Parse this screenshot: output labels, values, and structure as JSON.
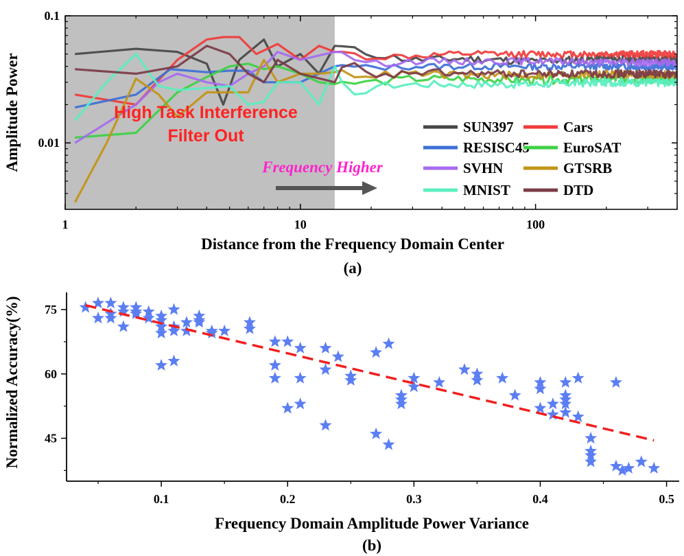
{
  "figure_label_a": "(a)",
  "figure_label_b": "(b)",
  "annotations": {
    "region_line1": "High Task Interference",
    "region_line2": "Filter Out",
    "arrow_label": "Frequency Higher"
  },
  "chart_data": [
    {
      "type": "line",
      "xscale": "log",
      "yscale": "log",
      "xlabel": "Distance from the Frequency Domain Center",
      "ylabel": "Amplitude Power",
      "xlim": [
        1,
        400
      ],
      "ylim": [
        0.003,
        0.1
      ],
      "xticks": [
        1,
        10,
        100
      ],
      "xtick_labels": [
        "1",
        "10",
        "100"
      ],
      "yticks": [
        0.01,
        0.1
      ],
      "ytick_labels": [
        "0.01",
        "0.1"
      ],
      "shaded_region": {
        "x_from": 1,
        "x_to": 14,
        "color": "#c0c0c0"
      },
      "legend": {
        "position": "bottom-right",
        "columns": 2
      },
      "series": [
        {
          "name": "SUN397",
          "color": "#474747",
          "width": 3.2,
          "x": [
            1.1,
            2,
            3,
            4,
            4.7,
            5.5,
            7,
            8,
            10,
            12,
            14,
            20,
            30,
            50,
            100,
            200,
            400
          ],
          "y": [
            0.05,
            0.055,
            0.052,
            0.042,
            0.02,
            0.045,
            0.065,
            0.04,
            0.05,
            0.035,
            0.058,
            0.05,
            0.045,
            0.046,
            0.044,
            0.046,
            0.045
          ],
          "noise": 0.07,
          "seed": 11
        },
        {
          "name": "Cars",
          "color": "#f03b3b",
          "width": 3.2,
          "x": [
            1.1,
            2,
            3,
            4,
            4.7,
            5.5,
            6.5,
            8,
            10,
            12,
            14,
            20,
            30,
            50,
            100,
            200,
            400
          ],
          "y": [
            0.024,
            0.02,
            0.045,
            0.065,
            0.068,
            0.068,
            0.05,
            0.06,
            0.045,
            0.058,
            0.052,
            0.047,
            0.048,
            0.05,
            0.05,
            0.05,
            0.05
          ],
          "noise": 0.06,
          "seed": 12
        },
        {
          "name": "RESISC45",
          "color": "#3d6fd6",
          "width": 3.2,
          "x": [
            1.1,
            2,
            2.8,
            4,
            5,
            6,
            7,
            8,
            10,
            14,
            20,
            30,
            50,
            100,
            200,
            400
          ],
          "y": [
            0.019,
            0.024,
            0.038,
            0.036,
            0.037,
            0.037,
            0.03,
            0.03,
            0.03,
            0.04,
            0.039,
            0.04,
            0.04,
            0.04,
            0.04,
            0.04
          ],
          "noise": 0.06,
          "seed": 13
        },
        {
          "name": "EuroSAT",
          "color": "#3ed144",
          "width": 3.2,
          "x": [
            1.1,
            2,
            3,
            4,
            5,
            6,
            7,
            8,
            10,
            12,
            14,
            20,
            30,
            50,
            100,
            200,
            400
          ],
          "y": [
            0.011,
            0.012,
            0.025,
            0.033,
            0.04,
            0.042,
            0.038,
            0.04,
            0.035,
            0.03,
            0.029,
            0.03,
            0.032,
            0.032,
            0.031,
            0.032,
            0.031
          ],
          "noise": 0.07,
          "seed": 14
        },
        {
          "name": "SVHN",
          "color": "#a56bf0",
          "width": 3.2,
          "x": [
            1.1,
            2,
            2.5,
            3,
            4,
            5,
            6,
            7,
            8,
            10,
            14,
            20,
            30,
            50,
            100,
            200,
            400
          ],
          "y": [
            0.01,
            0.02,
            0.03,
            0.035,
            0.03,
            0.028,
            0.035,
            0.04,
            0.052,
            0.045,
            0.052,
            0.042,
            0.044,
            0.044,
            0.044,
            0.043,
            0.043
          ],
          "noise": 0.06,
          "seed": 15
        },
        {
          "name": "GTSRB",
          "color": "#c29418",
          "width": 3.2,
          "x": [
            1.1,
            1.5,
            2,
            2.5,
            3,
            4,
            5,
            6,
            7,
            8,
            10,
            12,
            14,
            20,
            30,
            50,
            100,
            200,
            400
          ],
          "y": [
            0.0034,
            0.01,
            0.032,
            0.024,
            0.016,
            0.025,
            0.025,
            0.025,
            0.045,
            0.03,
            0.035,
            0.035,
            0.036,
            0.034,
            0.035,
            0.034,
            0.034,
            0.035,
            0.034
          ],
          "noise": 0.07,
          "seed": 16
        },
        {
          "name": "MNIST",
          "color": "#5beec0",
          "width": 3.2,
          "x": [
            1.1,
            1.5,
            2,
            2.5,
            3,
            4,
            5,
            6,
            7,
            8,
            10,
            12,
            14,
            16,
            20,
            30,
            50,
            100,
            200,
            400
          ],
          "y": [
            0.015,
            0.03,
            0.05,
            0.028,
            0.026,
            0.027,
            0.028,
            0.02,
            0.021,
            0.03,
            0.03,
            0.02,
            0.04,
            0.021,
            0.028,
            0.029,
            0.029,
            0.029,
            0.03,
            0.03
          ],
          "noise": 0.07,
          "seed": 17
        },
        {
          "name": "DTD",
          "color": "#7b3b46",
          "width": 3.2,
          "x": [
            1.1,
            2,
            3,
            4,
            5,
            6,
            7,
            8,
            10,
            14,
            16,
            20,
            30,
            50,
            100,
            200,
            400
          ],
          "y": [
            0.038,
            0.035,
            0.04,
            0.058,
            0.05,
            0.035,
            0.03,
            0.045,
            0.035,
            0.03,
            0.045,
            0.032,
            0.036,
            0.035,
            0.035,
            0.035,
            0.035
          ],
          "noise": 0.07,
          "seed": 18
        }
      ]
    },
    {
      "type": "scatter",
      "xlabel": "Frequency Domain Amplitude Power Variance",
      "ylabel": "Normalized Accuracy(%)",
      "xlim": [
        0.025,
        0.51
      ],
      "ylim": [
        35,
        79
      ],
      "xticks": [
        0.1,
        0.2,
        0.3,
        0.4,
        0.5
      ],
      "xtick_labels": [
        "0.1",
        "0.2",
        "0.3",
        "0.4",
        "0.5"
      ],
      "yticks": [
        45,
        60,
        75
      ],
      "ytick_labels": [
        "45",
        "60",
        "75"
      ],
      "marker": "star",
      "marker_color": "#5b7ef2",
      "points": [
        [
          0.04,
          75.5
        ],
        [
          0.05,
          76.5
        ],
        [
          0.05,
          73
        ],
        [
          0.06,
          76.5
        ],
        [
          0.06,
          74
        ],
        [
          0.06,
          73
        ],
        [
          0.07,
          75.5
        ],
        [
          0.07,
          74.5
        ],
        [
          0.07,
          71
        ],
        [
          0.08,
          75.5
        ],
        [
          0.08,
          74.5
        ],
        [
          0.08,
          74
        ],
        [
          0.09,
          74.5
        ],
        [
          0.09,
          73
        ],
        [
          0.1,
          73.5
        ],
        [
          0.1,
          72.5
        ],
        [
          0.1,
          71
        ],
        [
          0.1,
          69.5
        ],
        [
          0.1,
          62
        ],
        [
          0.11,
          75
        ],
        [
          0.11,
          71
        ],
        [
          0.11,
          70
        ],
        [
          0.11,
          63
        ],
        [
          0.12,
          72
        ],
        [
          0.12,
          70
        ],
        [
          0.13,
          73.5
        ],
        [
          0.13,
          72.5
        ],
        [
          0.13,
          72
        ],
        [
          0.14,
          70
        ],
        [
          0.14,
          69.5
        ],
        [
          0.15,
          70
        ],
        [
          0.17,
          72
        ],
        [
          0.17,
          70.5
        ],
        [
          0.19,
          67.5
        ],
        [
          0.19,
          62
        ],
        [
          0.19,
          59
        ],
        [
          0.2,
          67.5
        ],
        [
          0.2,
          52
        ],
        [
          0.21,
          66
        ],
        [
          0.21,
          59
        ],
        [
          0.21,
          53
        ],
        [
          0.23,
          66
        ],
        [
          0.23,
          61
        ],
        [
          0.23,
          48
        ],
        [
          0.24,
          64
        ],
        [
          0.25,
          59.5
        ],
        [
          0.25,
          58.5
        ],
        [
          0.27,
          65
        ],
        [
          0.27,
          46
        ],
        [
          0.28,
          67
        ],
        [
          0.28,
          43.5
        ],
        [
          0.29,
          55
        ],
        [
          0.29,
          54
        ],
        [
          0.29,
          53
        ],
        [
          0.3,
          57
        ],
        [
          0.3,
          59
        ],
        [
          0.32,
          58
        ],
        [
          0.34,
          61
        ],
        [
          0.35,
          60
        ],
        [
          0.35,
          58.5
        ],
        [
          0.37,
          59
        ],
        [
          0.38,
          55
        ],
        [
          0.4,
          58
        ],
        [
          0.4,
          56.5
        ],
        [
          0.4,
          52
        ],
        [
          0.41,
          53
        ],
        [
          0.41,
          50.5
        ],
        [
          0.42,
          58
        ],
        [
          0.42,
          55
        ],
        [
          0.42,
          54
        ],
        [
          0.42,
          53
        ],
        [
          0.42,
          51
        ],
        [
          0.43,
          59
        ],
        [
          0.43,
          50
        ],
        [
          0.44,
          45
        ],
        [
          0.44,
          42
        ],
        [
          0.44,
          41
        ],
        [
          0.44,
          39.5
        ],
        [
          0.46,
          58
        ],
        [
          0.46,
          38.5
        ],
        [
          0.465,
          37.5
        ],
        [
          0.47,
          38
        ],
        [
          0.48,
          39.5
        ],
        [
          0.49,
          38
        ]
      ],
      "trendline": {
        "x": [
          0.04,
          0.49
        ],
        "y": [
          76,
          44.5
        ],
        "color": "#f02020",
        "style": "dashed"
      }
    }
  ]
}
